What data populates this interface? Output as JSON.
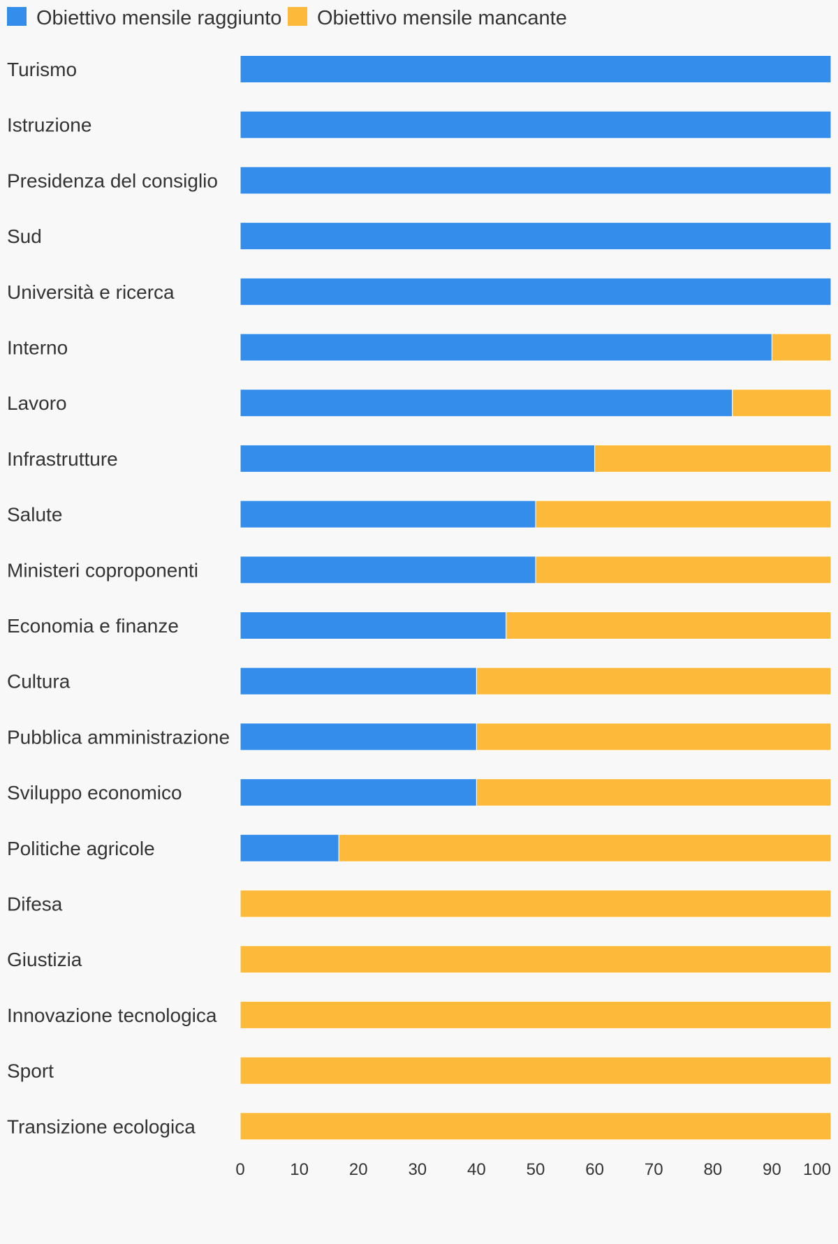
{
  "chart_data": {
    "type": "bar",
    "orientation": "horizontal",
    "stacked": true,
    "grid": false,
    "legend_position": "top-left",
    "xlim": [
      0,
      100
    ],
    "xticks": [
      "0",
      "10",
      "20",
      "30",
      "40",
      "50",
      "60",
      "70",
      "80",
      "90",
      "100"
    ],
    "categories": [
      "Turismo",
      "Istruzione",
      "Presidenza del consiglio",
      "Sud",
      "Università e ricerca",
      "Interno",
      "Lavoro",
      "Infrastrutture",
      "Salute",
      "Ministeri coproponenti",
      "Economia e finanze",
      "Cultura",
      "Pubblica amministrazione",
      "Sviluppo economico",
      "Politiche agricole",
      "Difesa",
      "Giustizia",
      "Innovazione tecnologica",
      "Sport",
      "Transizione ecologica"
    ],
    "series": [
      {
        "name": "Obiettivo mensile raggiunto",
        "color": "#348ceb",
        "values": [
          100,
          100,
          100,
          100,
          100,
          90,
          83.3,
          60,
          50,
          50,
          45,
          40,
          40,
          40,
          16.7,
          0,
          0,
          0,
          0,
          0
        ]
      },
      {
        "name": "Obiettivo mensile mancante",
        "color": "#fdb93a",
        "values": [
          0,
          0,
          0,
          0,
          0,
          10,
          16.7,
          40,
          50,
          50,
          55,
          60,
          60,
          60,
          83.3,
          100,
          100,
          100,
          100,
          100
        ]
      }
    ]
  }
}
